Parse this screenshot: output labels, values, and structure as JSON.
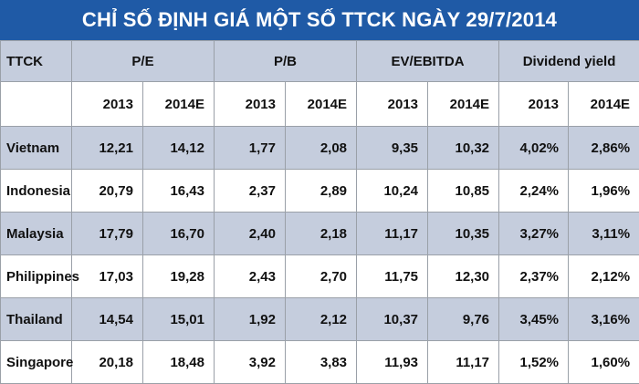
{
  "title": "CHỈ SỐ ĐỊNH GIÁ MỘT SỐ TTCK NGÀY 29/7/2014",
  "header": {
    "first_col": "TTCK",
    "groups": [
      "P/E",
      "P/B",
      "EV/EBITDA",
      "Dividend yield"
    ],
    "years": [
      "2013",
      "2014E",
      "2013",
      "2014E",
      "2013",
      "2014E",
      "2013",
      "2014E"
    ]
  },
  "rows": [
    {
      "country": "Vietnam",
      "values": [
        "12,21",
        "14,12",
        "1,77",
        "2,08",
        "9,35",
        "10,32",
        "4,02%",
        "2,86%"
      ]
    },
    {
      "country": "Indonesia",
      "values": [
        "20,79",
        "16,43",
        "2,37",
        "2,89",
        "10,24",
        "10,85",
        "2,24%",
        "1,96%"
      ]
    },
    {
      "country": "Malaysia",
      "values": [
        "17,79",
        "16,70",
        "2,40",
        "2,18",
        "11,17",
        "10,35",
        "3,27%",
        "3,11%"
      ]
    },
    {
      "country": "Philippines",
      "values": [
        "17,03",
        "19,28",
        "2,43",
        "2,70",
        "11,75",
        "12,30",
        "2,37%",
        "2,12%"
      ]
    },
    {
      "country": "Thailand",
      "values": [
        "14,54",
        "15,01",
        "1,92",
        "2,12",
        "10,37",
        "9,76",
        "3,45%",
        "3,16%"
      ]
    },
    {
      "country": "Singapore",
      "values": [
        "20,18",
        "18,48",
        "3,92",
        "3,83",
        "11,93",
        "11,17",
        "1,52%",
        "1,60%"
      ]
    }
  ],
  "colors": {
    "banner": "#1f5aa6",
    "shaded_row": "#c5cddd",
    "grid": "#9aa0a8"
  }
}
